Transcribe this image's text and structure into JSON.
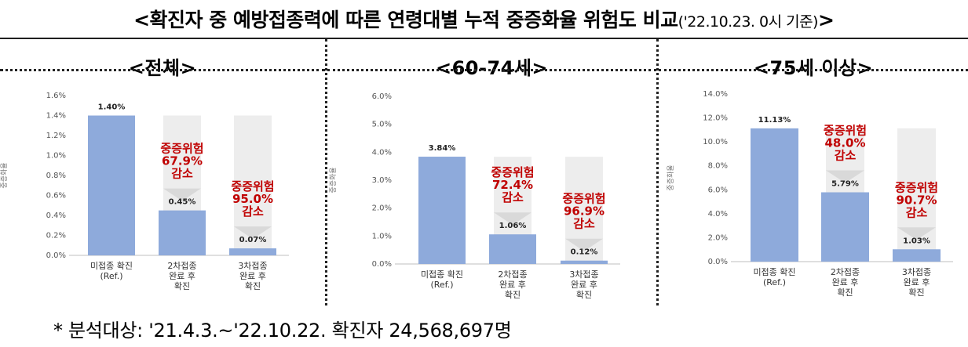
{
  "title": {
    "main": "<확진자 중 예방접종력에 따른 연령대별 누적 중증화율 위험도 비교",
    "sub": "('22.10.23. 0시 기준)",
    "close": ">"
  },
  "footnote": "* 분석대상: '21.4.3.~'22.10.22. 확진자 24,568,697명",
  "colors": {
    "bar": "#8eaadb",
    "ghost": "#ededed",
    "arrow": "#d9d9d9",
    "risk_text": "#c00000"
  },
  "chart_data": [
    {
      "type": "bar",
      "title": "<전체>",
      "ylabel": "중증화율",
      "ylim": [
        0,
        1.6
      ],
      "yticks": [
        "0.0%",
        "0.2%",
        "0.4%",
        "0.6%",
        "0.8%",
        "1.0%",
        "1.2%",
        "1.4%",
        "1.6%"
      ],
      "categories": [
        [
          "미접종 확진",
          "(Ref.)"
        ],
        [
          "2차접종",
          "완료 후",
          "확진"
        ],
        [
          "3차접종",
          "완료 후",
          "확진"
        ]
      ],
      "values": [
        1.4,
        0.45,
        0.07
      ],
      "data_labels": [
        "1.40%",
        "0.45%",
        "0.07%"
      ],
      "reference_value": 1.4,
      "annotations": [
        null,
        [
          "중증위험",
          "67.9%",
          "감소"
        ],
        [
          "중증위험",
          "95.0%",
          "감소"
        ]
      ]
    },
    {
      "type": "bar",
      "title": "<60-74세>",
      "ylabel": "중증화율",
      "ylim": [
        0,
        6.0
      ],
      "yticks": [
        "0.0%",
        "1.0%",
        "2.0%",
        "3.0%",
        "4.0%",
        "5.0%",
        "6.0%"
      ],
      "categories": [
        [
          "미접종 확진",
          "(Ref.)"
        ],
        [
          "2차접종",
          "완료 후",
          "확진"
        ],
        [
          "3차접종",
          "완료 후",
          "확진"
        ]
      ],
      "values": [
        3.84,
        1.06,
        0.12
      ],
      "data_labels": [
        "3.84%",
        "1.06%",
        "0.12%"
      ],
      "reference_value": 3.84,
      "annotations": [
        null,
        [
          "중증위험",
          "72.4%",
          "감소"
        ],
        [
          "중증위험",
          "96.9%",
          "감소"
        ]
      ]
    },
    {
      "type": "bar",
      "title": "<75세 이상>",
      "ylabel": "중증화율",
      "ylim": [
        0,
        14.0
      ],
      "yticks": [
        "0.0%",
        "2.0%",
        "4.0%",
        "6.0%",
        "8.0%",
        "10.0%",
        "12.0%",
        "14.0%"
      ],
      "categories": [
        [
          "미접종 확진",
          "(Ref.)"
        ],
        [
          "2차접종",
          "완료 후",
          "확진"
        ],
        [
          "3차접종",
          "완료 후",
          "확진"
        ]
      ],
      "values": [
        11.13,
        5.79,
        1.03
      ],
      "data_labels": [
        "11.13%",
        "5.79%",
        "1.03%"
      ],
      "reference_value": 11.13,
      "annotations": [
        null,
        [
          "중증위험",
          "48.0%",
          "감소"
        ],
        [
          "중증위험",
          "90.7%",
          "감소"
        ]
      ]
    }
  ]
}
